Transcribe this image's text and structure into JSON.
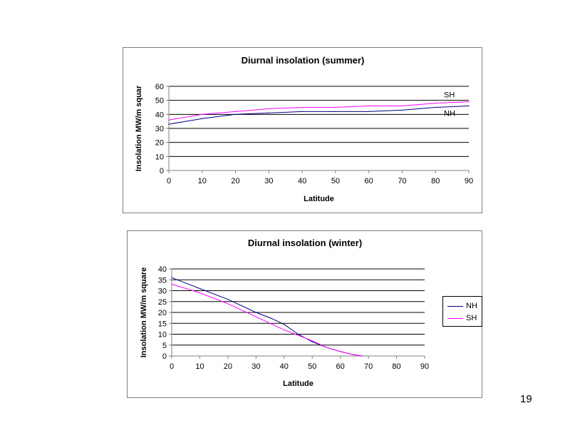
{
  "page": {
    "number": "19"
  },
  "chart_data": [
    {
      "type": "line",
      "title": "Diurnal insolation (summer)",
      "xlabel": "Latitude",
      "ylabel": "Insolation MW/m squar",
      "xlim": [
        0,
        90
      ],
      "ylim": [
        0,
        60
      ],
      "xticks": [
        0,
        10,
        20,
        30,
        40,
        50,
        60,
        70,
        80,
        90
      ],
      "yticks": [
        0,
        10,
        20,
        30,
        40,
        50,
        60
      ],
      "grid": "horizontal",
      "legend": "inline labels at right end",
      "series": [
        {
          "name": "NH",
          "color": "#000080",
          "x": [
            0,
            10,
            20,
            30,
            40,
            50,
            60,
            70,
            80,
            90
          ],
          "y": [
            33,
            37,
            40,
            41,
            42,
            42,
            42,
            43,
            45,
            46
          ]
        },
        {
          "name": "SH",
          "color": "#ff00ff",
          "x": [
            0,
            10,
            20,
            30,
            40,
            50,
            60,
            70,
            80,
            90
          ],
          "y": [
            36,
            40,
            42,
            44,
            45,
            45,
            46,
            46,
            48,
            49
          ]
        }
      ]
    },
    {
      "type": "line",
      "title": "Diurnal insolation (winter)",
      "xlabel": "Latitude",
      "ylabel": "Insolation MW/m square",
      "xlim": [
        0,
        90
      ],
      "ylim": [
        0,
        40
      ],
      "xticks": [
        0,
        10,
        20,
        30,
        40,
        50,
        60,
        70,
        80,
        90
      ],
      "yticks": [
        0,
        5,
        10,
        15,
        20,
        25,
        30,
        35,
        40
      ],
      "grid": "horizontal",
      "legend": "right",
      "series": [
        {
          "name": "NH",
          "color": "#000080",
          "x": [
            0,
            10,
            20,
            30,
            35,
            40,
            45,
            50,
            55,
            60,
            65,
            68
          ],
          "y": [
            36,
            31,
            26,
            20,
            17.5,
            14.5,
            10,
            6.5,
            4,
            2,
            0.5,
            0
          ]
        },
        {
          "name": "SH",
          "color": "#ff00ff",
          "x": [
            0,
            10,
            20,
            30,
            40,
            50,
            55,
            60,
            65,
            68
          ],
          "y": [
            33,
            29,
            24,
            18,
            12,
            7,
            4,
            2,
            0.5,
            0
          ]
        }
      ]
    }
  ]
}
